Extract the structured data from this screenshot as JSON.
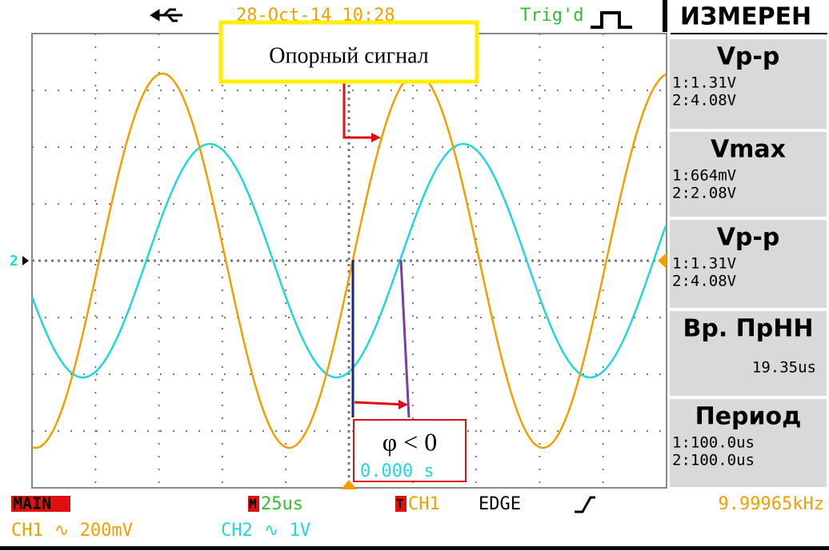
{
  "top_bar": {
    "date": "28-Oct-14 10:28",
    "trigger_status": "Trig'd",
    "menu_title": "ИЗМЕРЕН"
  },
  "channel_marker": "2",
  "measurements": [
    {
      "name": "Vp-p",
      "lines": [
        "1:1.31V",
        "2:4.08V"
      ]
    },
    {
      "name": "Vmax",
      "lines": [
        "1:664mV",
        "2:2.08V"
      ]
    },
    {
      "name": "Vp-p",
      "lines": [
        "1:1.31V",
        "2:4.08V"
      ]
    },
    {
      "name": "Вр. ПрНН",
      "lines": [
        "19.35us"
      ]
    },
    {
      "name": "Период",
      "lines": [
        "1:100.0us",
        "2:100.0us"
      ]
    }
  ],
  "annotations": {
    "reference": "Опорный сигнал",
    "phase": "φ < 0",
    "time_offset": "0.000 s"
  },
  "status_bar": {
    "mode": "MAIN",
    "timebase_icon": "M",
    "timebase": "25us",
    "trigger_icon": "T",
    "trigger_source": "CH1",
    "trigger_type": "EDGE",
    "frequency": "9.99965kHz",
    "ch1": "CH1",
    "ch1_scale": "∿ 200mV",
    "ch2": "CH2",
    "ch2_scale": "∿ 1V"
  }
}
